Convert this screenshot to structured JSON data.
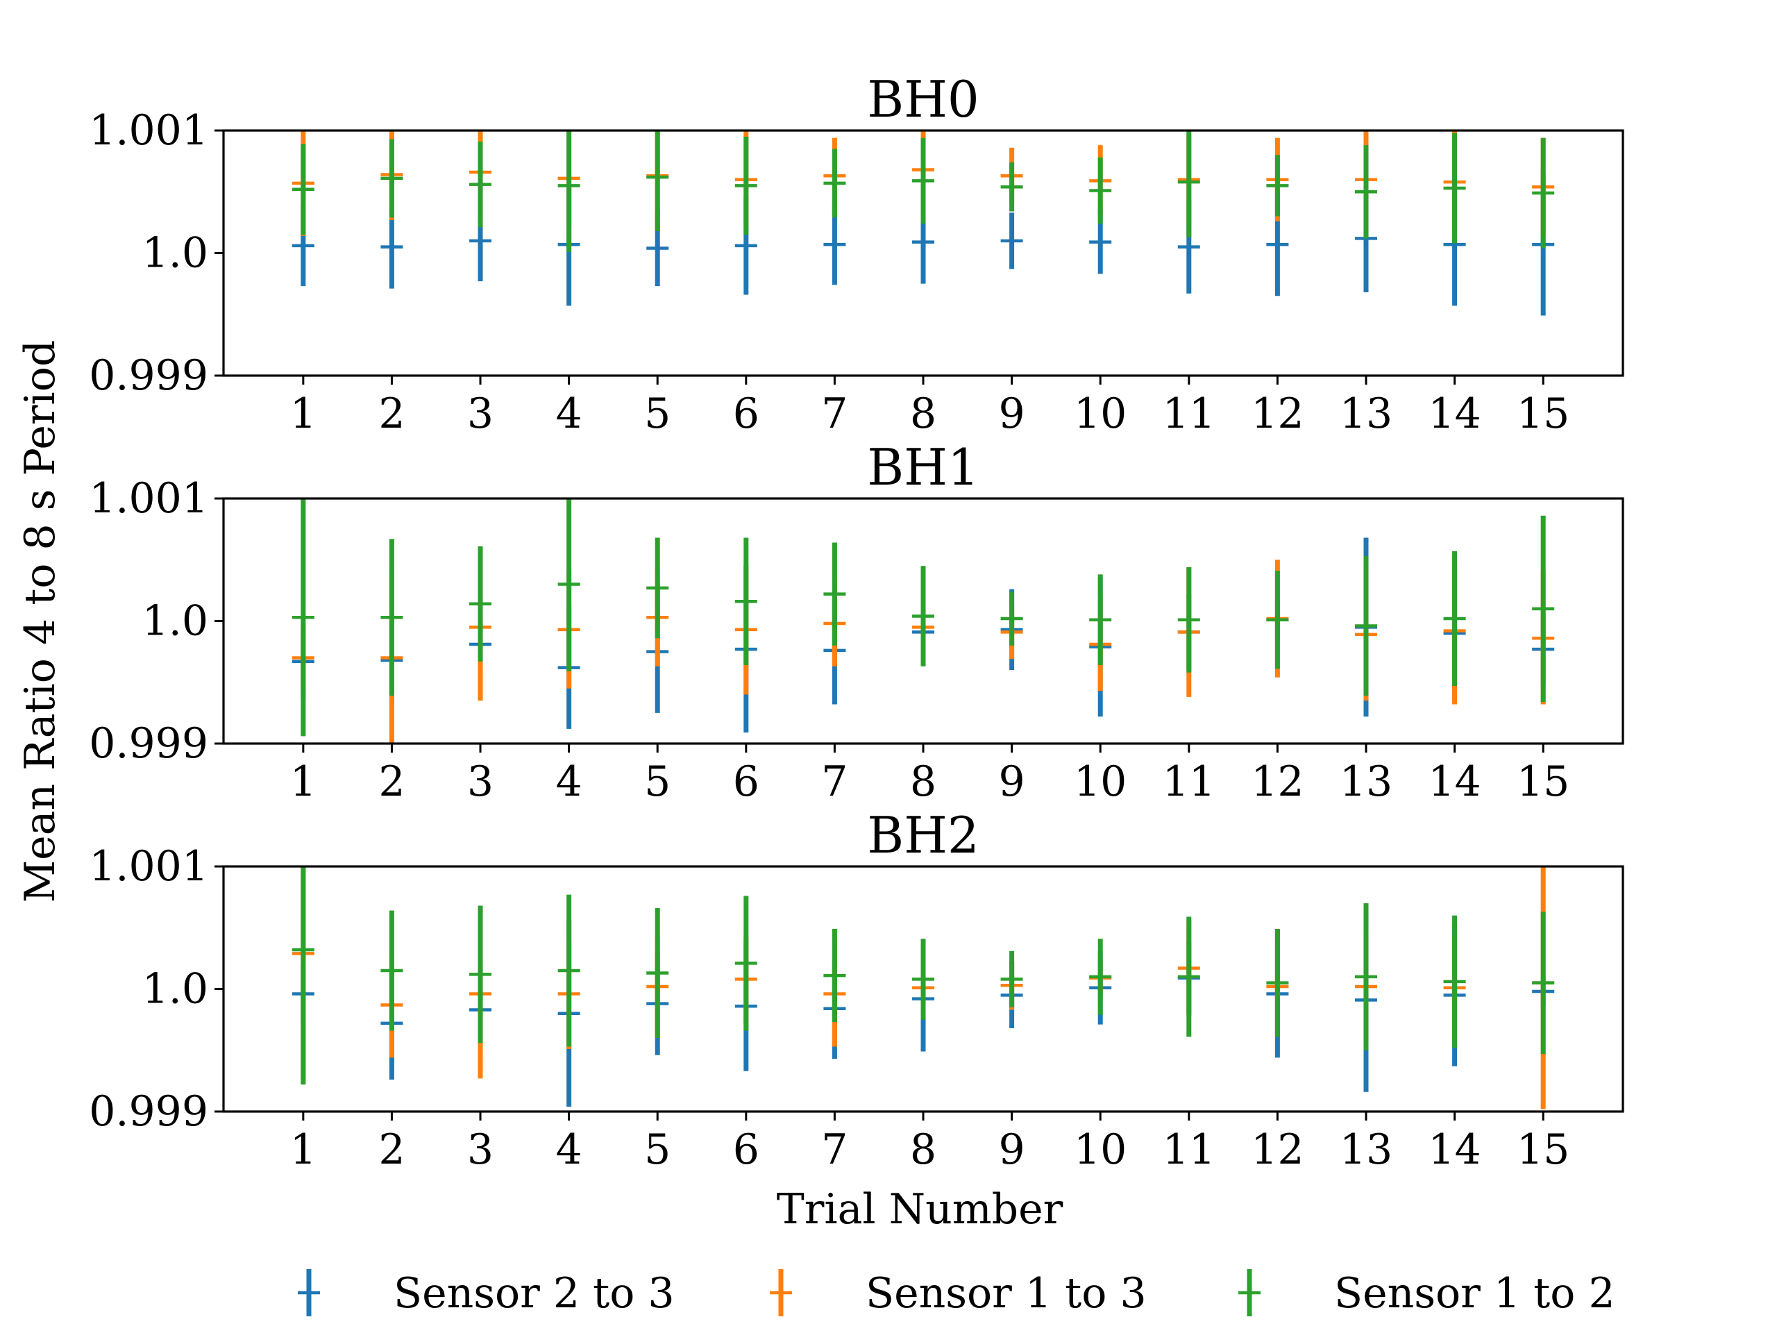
{
  "chart_data": {
    "type": "errorbar",
    "xlabel": "Trial Number",
    "ylabel": "Mean Ratio 4 to 8 s Period",
    "x": [
      1,
      2,
      3,
      4,
      5,
      6,
      7,
      8,
      9,
      10,
      11,
      12,
      13,
      14,
      15
    ],
    "ylim": [
      0.999,
      1.001
    ],
    "yticks": [
      "0.999",
      "1.0",
      "1.001"
    ],
    "grid": false,
    "legend": {
      "position": "bottom",
      "entries": [
        {
          "name": "Sensor 2 to 3",
          "color": "#1f77b4"
        },
        {
          "name": "Sensor 1 to 3",
          "color": "#ff7f0e"
        },
        {
          "name": "Sensor 1 to 2",
          "color": "#2ca02c"
        }
      ]
    },
    "panels": [
      {
        "title": "BH0",
        "series": [
          {
            "name": "Sensor 2 to 3",
            "color": "#1f77b4",
            "y": [
              1.00006,
              1.00005,
              1.0001,
              1.00007,
              1.00004,
              1.00006,
              1.00007,
              1.00009,
              1.0001,
              1.00009,
              1.00005,
              1.00007,
              1.00012,
              1.00007,
              1.00007
            ],
            "err": [
              0.00033,
              0.00034,
              0.00033,
              0.0005,
              0.00031,
              0.0004,
              0.00033,
              0.00034,
              0.00023,
              0.00026,
              0.00038,
              0.00042,
              0.00044,
              0.0005,
              0.00058
            ]
          },
          {
            "name": "Sensor 1 to 3",
            "color": "#ff7f0e",
            "y": [
              1.00057,
              1.00064,
              1.00066,
              1.00061,
              1.00063,
              1.0006,
              1.00063,
              1.00068,
              1.00063,
              1.00059,
              1.0006,
              1.0006,
              1.0006,
              1.00058,
              1.00054
            ],
            "err": [
              0.00043,
              0.00037,
              0.00036,
              0.0004,
              0.00044,
              0.0004,
              0.00031,
              0.00036,
              0.00023,
              0.00029,
              0.00037,
              0.00034,
              0.00043,
              0.00042,
              0.0004
            ]
          },
          {
            "name": "Sensor 1 to 2",
            "color": "#2ca02c",
            "y": [
              1.00052,
              1.00061,
              1.00056,
              1.00055,
              1.00062,
              1.00055,
              1.00057,
              1.00059,
              1.00054,
              1.00051,
              1.00058,
              1.00055,
              1.0005,
              1.00053,
              1.00049
            ],
            "err": [
              0.00037,
              0.00032,
              0.00035,
              0.00054,
              0.00044,
              0.0004,
              0.00028,
              0.00035,
              0.0002,
              0.00027,
              0.00045,
              0.00025,
              0.00038,
              0.00045,
              0.00045
            ]
          }
        ]
      },
      {
        "title": "BH1",
        "series": [
          {
            "name": "Sensor 2 to 3",
            "color": "#1f77b4",
            "y": [
              0.99967,
              0.99968,
              0.99981,
              0.99962,
              0.99975,
              0.99977,
              0.99976,
              0.99991,
              0.99993,
              0.99979,
              0.99991,
              1.00001,
              0.99995,
              0.9999,
              0.99977
            ],
            "err": [
              0.0003,
              0.00033,
              0.00023,
              0.0005,
              0.0005,
              0.00068,
              0.00044,
              0.00025,
              0.00033,
              0.00057,
              0.00031,
              0.00016,
              0.00073,
              0.00054,
              0.00029
            ]
          },
          {
            "name": "Sensor 1 to 3",
            "color": "#ff7f0e",
            "y": [
              0.9997,
              0.9997,
              0.99995,
              0.99993,
              1.00003,
              0.99993,
              0.99998,
              0.99995,
              0.99991,
              0.99981,
              0.99991,
              1.00002,
              0.99989,
              0.99992,
              0.99986
            ],
            "err": [
              0.00026,
              0.0007,
              0.0006,
              0.00048,
              0.0004,
              0.00053,
              0.00035,
              0.00027,
              0.00022,
              0.00038,
              0.00053,
              0.00048,
              0.00054,
              0.0006,
              0.00054
            ]
          },
          {
            "name": "Sensor 1 to 2",
            "color": "#2ca02c",
            "y": [
              1.00003,
              1.00003,
              1.00014,
              1.0003,
              1.00027,
              1.00016,
              1.00022,
              1.00004,
              1.00002,
              1.00001,
              1.00001,
              1.00001,
              0.99996,
              1.00002,
              1.0001
            ],
            "err": [
              0.00097,
              0.00064,
              0.00047,
              0.00071,
              0.00041,
              0.00052,
              0.00042,
              0.00041,
              0.00022,
              0.00037,
              0.00043,
              0.0004,
              0.00057,
              0.00055,
              0.00076
            ]
          }
        ]
      },
      {
        "title": "BH2",
        "series": [
          {
            "name": "Sensor 2 to 3",
            "color": "#1f77b4",
            "y": [
              0.99996,
              0.99972,
              0.99983,
              0.9998,
              0.99988,
              0.99986,
              0.99984,
              0.99992,
              0.99995,
              1.00001,
              1.00009,
              0.99996,
              0.99991,
              0.99995,
              0.99998
            ],
            "err": [
              0.00024,
              0.00046,
              0.0004,
              0.00076,
              0.00042,
              0.00053,
              0.00041,
              0.00043,
              0.00027,
              0.0003,
              0.0003,
              0.00052,
              0.00075,
              0.00058,
              0.00012
            ]
          },
          {
            "name": "Sensor 1 to 3",
            "color": "#ff7f0e",
            "y": [
              1.00029,
              0.99987,
              0.99996,
              0.99996,
              1.00002,
              1.00008,
              0.99996,
              1.00001,
              1.00003,
              1.00009,
              1.00017,
              1.00002,
              1.00002,
              1.00001,
              1.00005
            ],
            "err": [
              0.00103,
              0.00043,
              0.00069,
              0.00045,
              0.00041,
              0.00036,
              0.00043,
              0.00025,
              0.0002,
              0.00014,
              0.00039,
              0.00039,
              0.00045,
              0.00043,
              0.00103
            ]
          },
          {
            "name": "Sensor 1 to 2",
            "color": "#2ca02c",
            "y": [
              1.00032,
              1.00015,
              1.00012,
              1.00015,
              1.00013,
              1.00021,
              1.00011,
              1.00008,
              1.00008,
              1.0001,
              1.0001,
              1.00005,
              1.0001,
              1.00006,
              1.00005
            ],
            "err": [
              0.0011,
              0.00049,
              0.00056,
              0.00062,
              0.00053,
              0.00055,
              0.00038,
              0.00033,
              0.00023,
              0.00031,
              0.00049,
              0.00044,
              0.0006,
              0.00054,
              0.00058
            ]
          }
        ]
      }
    ]
  }
}
